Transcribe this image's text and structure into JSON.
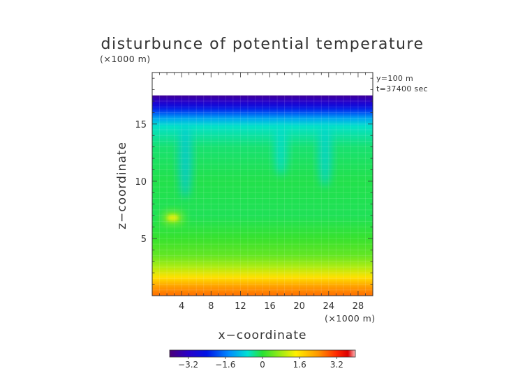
{
  "chart_data": {
    "type": "heatmap",
    "title": "disturbunce of potential temperature",
    "subtitle_units": "(×1000 m)",
    "annotation_y": "y=100 m",
    "annotation_t": "t=37400 sec",
    "xlabel": "x−coordinate",
    "ylabel": "z−coordinate",
    "x_unit_label": "(×1000 m)",
    "xlim": [
      0,
      30
    ],
    "ylim": [
      0,
      19.5
    ],
    "x_ticks": [
      "4",
      "8",
      "12",
      "16",
      "20",
      "24",
      "28"
    ],
    "x_tick_values": [
      4,
      8,
      12,
      16,
      20,
      24,
      28
    ],
    "y_ticks": [
      "5",
      "10",
      "15"
    ],
    "y_tick_values": [
      5,
      10,
      15
    ],
    "data_top_z": 17.5,
    "colorbar": {
      "range": [
        -4,
        4
      ],
      "tick_labels": [
        "−3.2",
        "−1.6",
        "0",
        "1.6",
        "3.2"
      ],
      "tick_values": [
        -3.2,
        -1.6,
        0,
        1.6,
        3.2
      ]
    },
    "field_profile": [
      {
        "z": 0.0,
        "value": 2.7
      },
      {
        "z": 0.8,
        "value": 2.3
      },
      {
        "z": 1.6,
        "value": 1.6
      },
      {
        "z": 2.5,
        "value": 0.9
      },
      {
        "z": 3.5,
        "value": 0.4
      },
      {
        "z": 5.0,
        "value": 0.1
      },
      {
        "z": 7.0,
        "value": -0.15
      },
      {
        "z": 10.0,
        "value": -0.1
      },
      {
        "z": 13.0,
        "value": -0.25
      },
      {
        "z": 14.8,
        "value": -0.6
      },
      {
        "z": 15.5,
        "value": -1.2
      },
      {
        "z": 16.0,
        "value": -1.9
      },
      {
        "z": 16.5,
        "value": -2.6
      },
      {
        "z": 17.0,
        "value": -3.2
      },
      {
        "z": 17.5,
        "value": -3.7
      }
    ],
    "features": [
      {
        "kind": "warm-blob",
        "x": 2.8,
        "z": 6.8,
        "value": 1.2
      },
      {
        "kind": "cool-plume",
        "x": 4.5,
        "z_from": 8.5,
        "z_to": 15.0,
        "value": -0.9
      },
      {
        "kind": "cool-plume",
        "x": 17.5,
        "z_from": 10.5,
        "z_to": 15.0,
        "value": -0.7
      },
      {
        "kind": "cool-plume",
        "x": 23.5,
        "z_from": 9.5,
        "z_to": 15.0,
        "value": -0.8
      }
    ]
  }
}
